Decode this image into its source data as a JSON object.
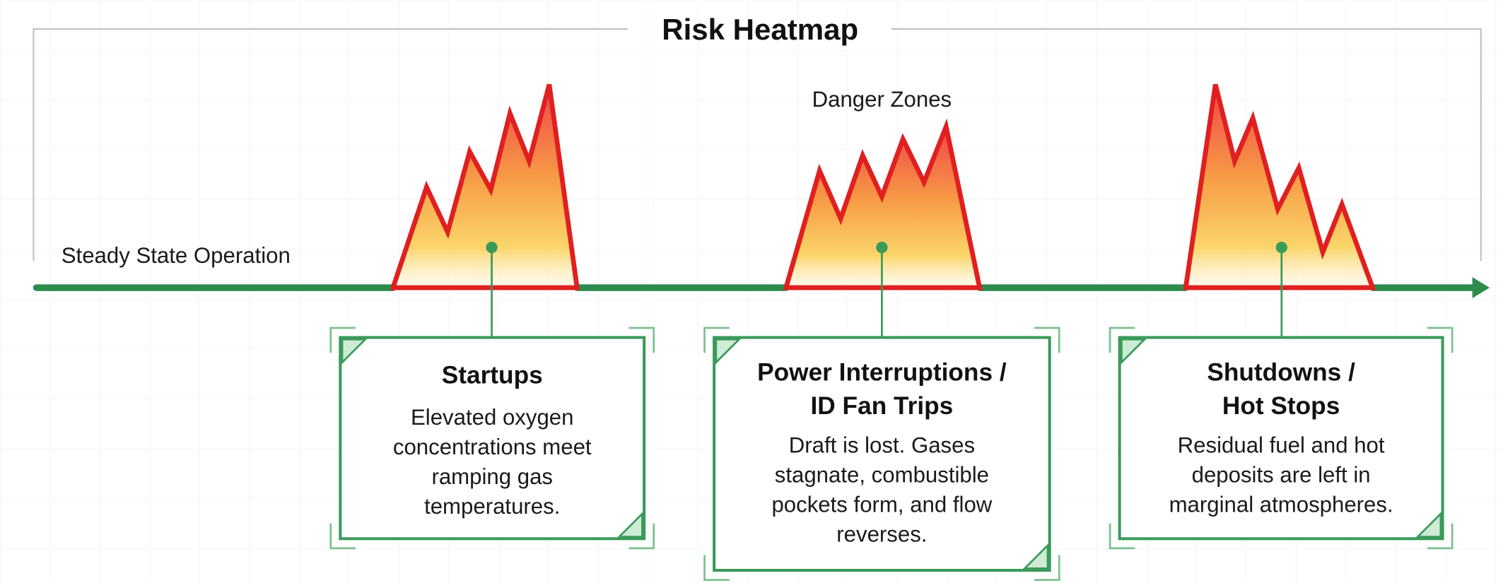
{
  "header": {
    "title": "Risk Heatmap"
  },
  "labels": {
    "danger": "Danger Zones",
    "steady": "Steady State Operation"
  },
  "zones": [
    {
      "title_lines": [
        "Startups"
      ],
      "body_lines": [
        "Elevated oxygen",
        "concentrations meet",
        "ramping gas",
        "temperatures."
      ]
    },
    {
      "title_lines": [
        "Power Interruptions /",
        "ID Fan Trips"
      ],
      "body_lines": [
        "Draft is lost. Gases",
        "stagnate, combustible",
        "pockets form, and flow",
        "reverses."
      ]
    },
    {
      "title_lines": [
        "Shutdowns /",
        "Hot Stops"
      ],
      "body_lines": [
        "Residual fuel and hot",
        "deposits are left in",
        "marginal atmospheres."
      ]
    }
  ]
}
